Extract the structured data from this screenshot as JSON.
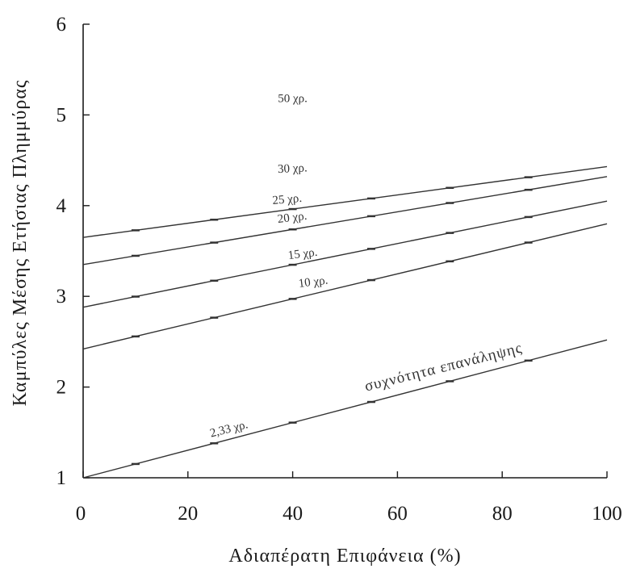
{
  "chart_data": {
    "type": "line",
    "title": "",
    "xlabel": "Αδιαπέρατη Επιφάνεια (%)",
    "ylabel": "Καμπύλες Μέσης Ετήσιας Πλημμύρας",
    "xlim": [
      0,
      100
    ],
    "ylim": [
      1,
      6
    ],
    "xticks": [
      "0",
      "20",
      "40",
      "60",
      "80",
      "100"
    ],
    "yticks": [
      "1",
      "2",
      "3",
      "4",
      "5",
      "6"
    ],
    "grid": false,
    "series": [
      {
        "name": "2,33 χρ.",
        "x": [
          0,
          100
        ],
        "y": [
          1.0,
          2.52
        ]
      },
      {
        "name": "10 χρ.",
        "x": [
          0,
          100
        ],
        "y": [
          2.42,
          3.8
        ]
      },
      {
        "name": "15 χρ.",
        "x": [
          0,
          100
        ],
        "y": [
          2.88,
          4.05
        ]
      },
      {
        "name": "20 χρ.",
        "x": [
          0,
          100
        ],
        "y": [
          3.35,
          4.32
        ]
      },
      {
        "name": "25 χρ.",
        "x": [
          0,
          100
        ],
        "y": [
          3.65,
          4.43
        ]
      },
      {
        "name": "30 χρ.",
        "x": [],
        "y": []
      },
      {
        "name": "50 χρ.",
        "x": [],
        "y": []
      }
    ],
    "annotation": "συχνότητα επανάληψης"
  }
}
